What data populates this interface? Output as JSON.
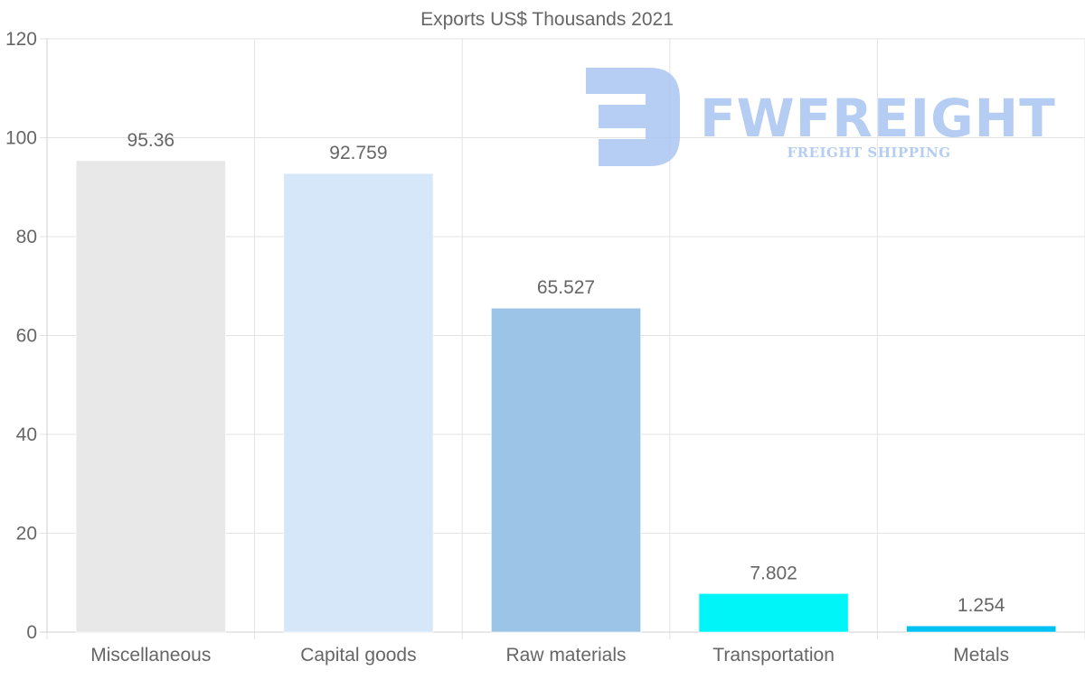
{
  "chart_data": {
    "type": "bar",
    "title": "Exports US$ Thousands 2021",
    "categories": [
      "Miscellaneous",
      "Capital goods",
      "Raw materials",
      "Transportation",
      "Metals"
    ],
    "values": [
      95.36,
      92.759,
      65.527,
      7.802,
      1.254
    ],
    "value_labels": [
      "95.36",
      "92.759",
      "65.527",
      "7.802",
      "1.254"
    ],
    "colors": [
      "#e8e8e8",
      "#d6e7f9",
      "#9bc4e7",
      "#00f5f8",
      "#00c2f2"
    ],
    "ylim": [
      0,
      120
    ],
    "yticks": [
      "0",
      "20",
      "40",
      "60",
      "80",
      "100",
      "120"
    ],
    "xlabel": "",
    "ylabel": "",
    "grid": true
  },
  "watermark": {
    "brand": "FWFREIGHT",
    "tagline": "FREIGHT SHIPPING"
  }
}
